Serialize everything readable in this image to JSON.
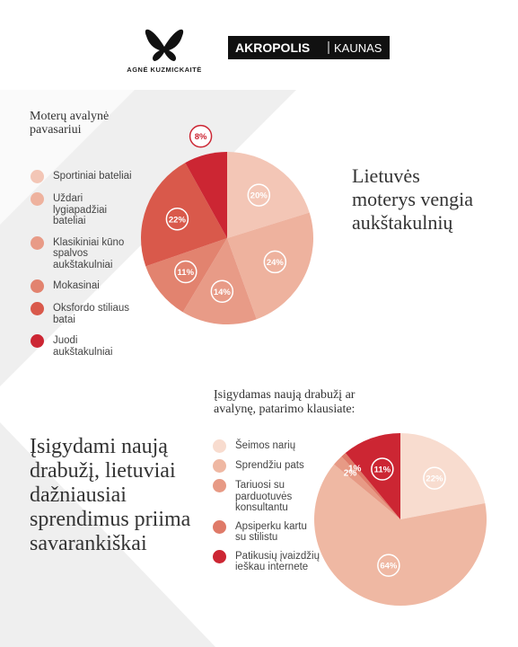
{
  "brands": {
    "designer": "AGNĖ KUZMICKAITĖ",
    "mall": "AKROPOLIS",
    "city": "KAUNAS"
  },
  "headlines": [
    "Lietuvės moterys vengia aukštakulnių",
    "Įsigydami naują drabužį, lietuviai dažniausiai sprendimus priima savarankiškai"
  ],
  "chart_data": [
    {
      "type": "pie",
      "title": "Moterų avalynė pavasariui",
      "categories": [
        "Sportiniai bateliai",
        "Uždari lygiapadžiai bateliai",
        "Klasikiniai kūno spalvos aukštakulniai",
        "Mokasinai",
        "Oksfordo stiliaus batai",
        "Juodi aukštakulniai"
      ],
      "values": [
        20,
        24,
        14,
        11,
        22,
        8
      ],
      "value_labels": [
        "20%",
        "24%",
        "14%",
        "11%",
        "22%",
        "8%"
      ],
      "colors": [
        "#f3c6b6",
        "#eeb29e",
        "#e89b87",
        "#e2836f",
        "#d9594b",
        "#cc2633"
      ]
    },
    {
      "type": "pie",
      "title": "Įsigydamas naują drabužį ar avalynę, patarimo klausiate:",
      "categories": [
        "Šeimos narių",
        "Sprendžiu pats",
        "Tariuosi su parduotuvės konsultantu",
        "Apsiperku kartu su stilistu",
        "Patikusių įvaizdžių ieškau internete"
      ],
      "values": [
        22,
        64,
        2,
        1,
        11
      ],
      "value_labels": [
        "22%",
        "64%",
        "2%",
        "1%",
        "11%"
      ],
      "colors": [
        "#f8dccf",
        "#efb8a3",
        "#e79a85",
        "#df7a68",
        "#cc2633"
      ]
    }
  ]
}
